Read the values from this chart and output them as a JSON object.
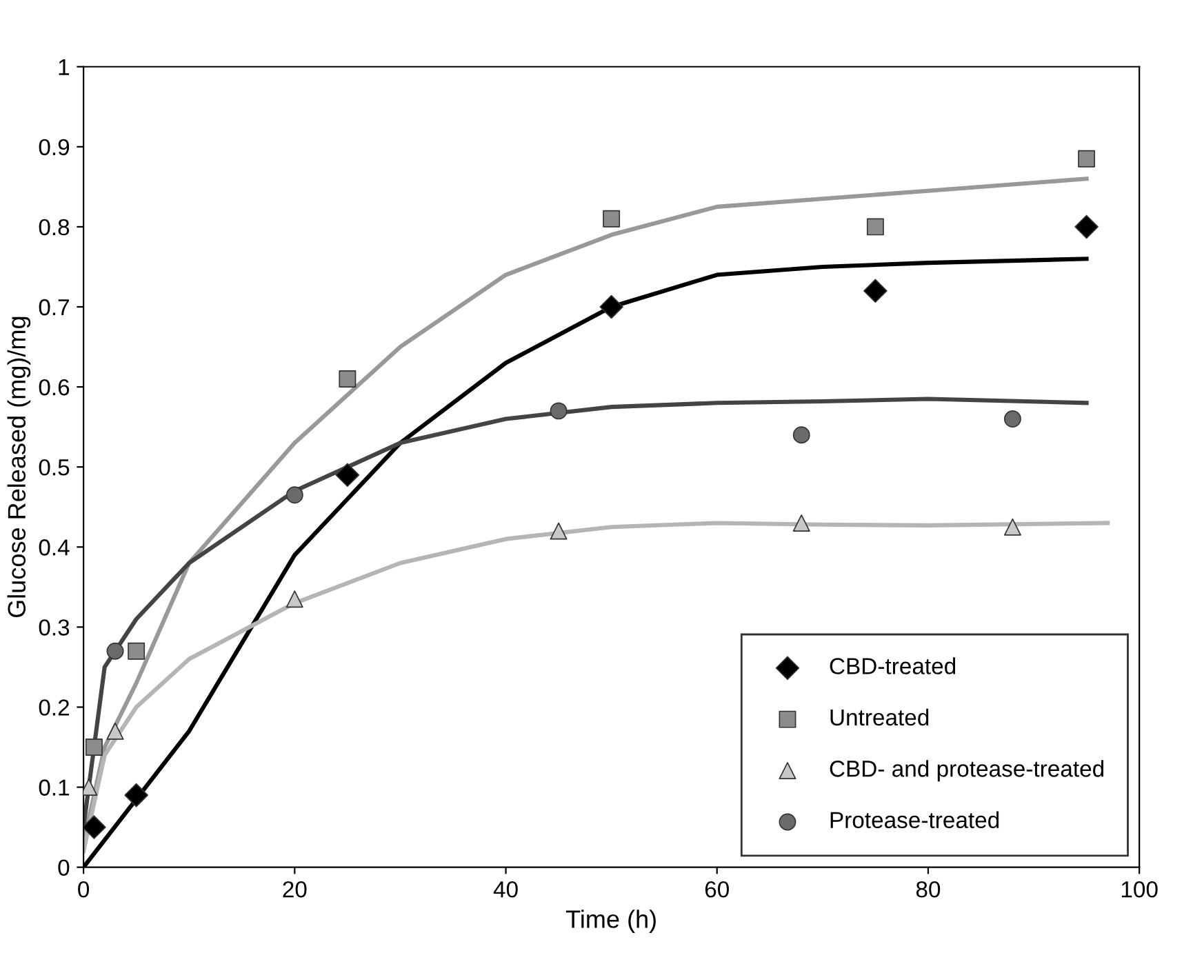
{
  "chart_data": {
    "type": "scatter",
    "xlabel": "Time (h)",
    "ylabel": "Glucose Released (mg)/mg",
    "xlim": [
      0,
      100
    ],
    "ylim": [
      0,
      1
    ],
    "xticks": [
      0,
      20,
      40,
      60,
      80,
      100
    ],
    "yticks": [
      0,
      {
        "value": 0.1,
        "label": "0.1"
      },
      {
        "value": 0.2,
        "label": "0.2"
      },
      {
        "value": 0.3,
        "label": "0.3"
      },
      {
        "value": 0.4,
        "label": "0.4"
      },
      {
        "value": 0.5,
        "label": "0.5"
      },
      {
        "value": 0.6,
        "label": "0.6"
      },
      {
        "value": 0.7,
        "label": "0.7"
      },
      {
        "value": 0.8,
        "label": "0.8"
      },
      {
        "value": 0.9,
        "label": "0.9"
      },
      1
    ],
    "legend": "bottom right",
    "series": [
      {
        "type": "line",
        "color": "#000000",
        "x": [
          0,
          10,
          20,
          30,
          40,
          50,
          60,
          70,
          80,
          95
        ],
        "values": [
          0,
          0.17,
          0.39,
          0.53,
          0.63,
          0.7,
          0.74,
          0.75,
          0.755,
          0.76
        ]
      },
      {
        "type": "line",
        "color": "#999999",
        "x": [
          0,
          2,
          5,
          10,
          20,
          30,
          40,
          50,
          60,
          70,
          80,
          95
        ],
        "values": [
          0.03,
          0.15,
          0.23,
          0.38,
          0.53,
          0.65,
          0.74,
          0.79,
          0.825,
          0.835,
          0.845,
          0.86
        ]
      },
      {
        "type": "line",
        "color": "#b5b5b5",
        "x": [
          0,
          2,
          5,
          10,
          20,
          30,
          40,
          50,
          60,
          70,
          80,
          97
        ],
        "values": [
          0.02,
          0.14,
          0.2,
          0.26,
          0.33,
          0.38,
          0.41,
          0.425,
          0.43,
          0.428,
          0.427,
          0.43
        ]
      },
      {
        "type": "line",
        "color": "#444444",
        "x": [
          0,
          2,
          5,
          10,
          20,
          30,
          40,
          50,
          60,
          70,
          80,
          95
        ],
        "values": [
          0.05,
          0.25,
          0.31,
          0.38,
          0.47,
          0.53,
          0.56,
          0.575,
          0.58,
          0.582,
          0.585,
          0.58
        ]
      },
      {
        "name": "CBD-treated",
        "color": "#000000",
        "marker": "diamond",
        "x": [
          1,
          5,
          25,
          50,
          75,
          95
        ],
        "values": [
          0.05,
          0.09,
          0.49,
          0.7,
          0.72,
          0.8
        ]
      },
      {
        "name": "Untreated",
        "color": "#8c8c8c",
        "marker": "square",
        "x": [
          1,
          5,
          25,
          50,
          75,
          95
        ],
        "values": [
          0.15,
          0.27,
          0.61,
          0.81,
          0.8,
          0.885
        ]
      },
      {
        "name": "CBD- and protease-treated",
        "color": "#c8c8c8",
        "marker": "triangle",
        "x": [
          0.5,
          3,
          20,
          45,
          68,
          88
        ],
        "values": [
          0.1,
          0.17,
          0.335,
          0.42,
          0.43,
          0.425
        ]
      },
      {
        "name": "Protease-treated",
        "color": "#6a6a6a",
        "marker": "circle",
        "x": [
          3,
          20,
          45,
          68,
          88
        ],
        "values": [
          0.27,
          0.465,
          0.57,
          0.54,
          0.56
        ]
      }
    ]
  }
}
